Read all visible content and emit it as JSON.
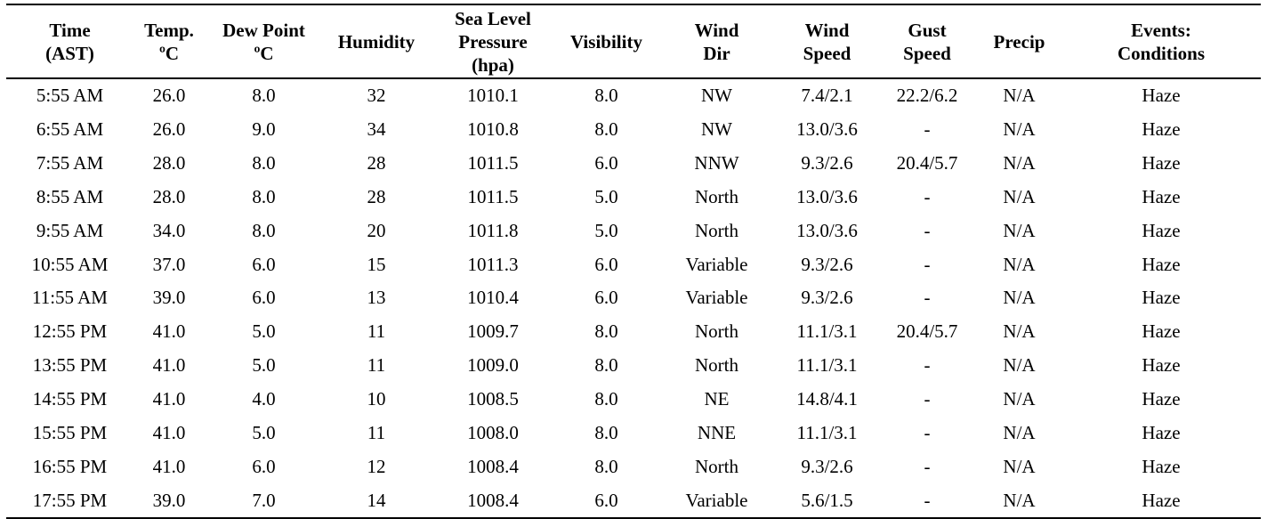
{
  "table": {
    "headers": [
      [
        "Time",
        "(AST)"
      ],
      [
        "Temp.",
        "ºC"
      ],
      [
        "Dew Point",
        "ºC"
      ],
      [
        "Humidity"
      ],
      [
        "Sea Level",
        "Pressure",
        "(hpa)"
      ],
      [
        "Visibility"
      ],
      [
        "Wind",
        "Dir"
      ],
      [
        "Wind",
        "Speed"
      ],
      [
        "Gust",
        "Speed"
      ],
      [
        "Precip"
      ],
      [
        "Events:",
        "Conditions"
      ]
    ],
    "rows": [
      [
        "5:55 AM",
        "26.0",
        "8.0",
        "32",
        "1010.1",
        "8.0",
        "NW",
        "7.4/2.1",
        "22.2/6.2",
        "N/A",
        "Haze"
      ],
      [
        "6:55 AM",
        "26.0",
        "9.0",
        "34",
        "1010.8",
        "8.0",
        "NW",
        "13.0/3.6",
        "-",
        "N/A",
        "Haze"
      ],
      [
        "7:55 AM",
        "28.0",
        "8.0",
        "28",
        "1011.5",
        "6.0",
        "NNW",
        "9.3/2.6",
        "20.4/5.7",
        "N/A",
        "Haze"
      ],
      [
        "8:55 AM",
        "28.0",
        "8.0",
        "28",
        "1011.5",
        "5.0",
        "North",
        "13.0/3.6",
        "-",
        "N/A",
        "Haze"
      ],
      [
        "9:55 AM",
        "34.0",
        "8.0",
        "20",
        "1011.8",
        "5.0",
        "North",
        "13.0/3.6",
        "-",
        "N/A",
        "Haze"
      ],
      [
        "10:55 AM",
        "37.0",
        "6.0",
        "15",
        "1011.3",
        "6.0",
        "Variable",
        "9.3/2.6",
        "-",
        "N/A",
        "Haze"
      ],
      [
        "11:55 AM",
        "39.0",
        "6.0",
        "13",
        "1010.4",
        "6.0",
        "Variable",
        "9.3/2.6",
        "-",
        "N/A",
        "Haze"
      ],
      [
        "12:55 PM",
        "41.0",
        "5.0",
        "11",
        "1009.7",
        "8.0",
        "North",
        "11.1/3.1",
        "20.4/5.7",
        "N/A",
        "Haze"
      ],
      [
        "13:55 PM",
        "41.0",
        "5.0",
        "11",
        "1009.0",
        "8.0",
        "North",
        "11.1/3.1",
        "-",
        "N/A",
        "Haze"
      ],
      [
        "14:55 PM",
        "41.0",
        "4.0",
        "10",
        "1008.5",
        "8.0",
        "NE",
        "14.8/4.1",
        "-",
        "N/A",
        "Haze"
      ],
      [
        "15:55 PM",
        "41.0",
        "5.0",
        "11",
        "1008.0",
        "8.0",
        "NNE",
        "11.1/3.1",
        "-",
        "N/A",
        "Haze"
      ],
      [
        "16:55 PM",
        "41.0",
        "6.0",
        "12",
        "1008.4",
        "8.0",
        "North",
        "9.3/2.6",
        "-",
        "N/A",
        "Haze"
      ],
      [
        "17:55 PM",
        "39.0",
        "7.0",
        "14",
        "1008.4",
        "6.0",
        "Variable",
        "5.6/1.5",
        "-",
        "N/A",
        "Haze"
      ]
    ]
  }
}
